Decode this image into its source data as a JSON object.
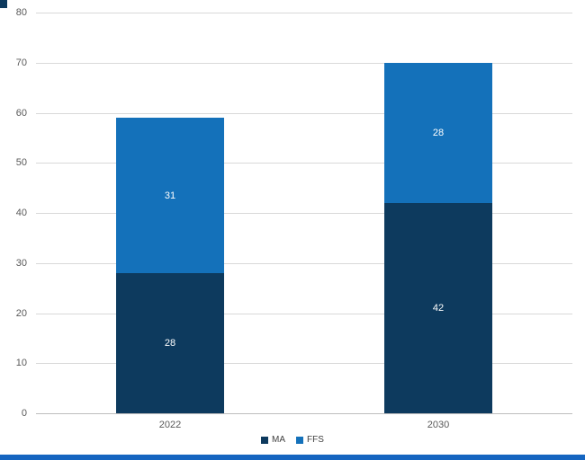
{
  "chart_data": {
    "type": "bar",
    "stacked": true,
    "title": "",
    "xlabel": "",
    "ylabel": "",
    "categories": [
      "2022",
      "2030"
    ],
    "series": [
      {
        "name": "MA",
        "color": "#0d3a5e",
        "values": [
          28,
          42
        ]
      },
      {
        "name": "FFS",
        "color": "#1471ba",
        "values": [
          31,
          28
        ]
      }
    ],
    "totals": [
      59,
      70
    ],
    "ylim": [
      0,
      80
    ],
    "ytick_step": 10,
    "ytick_labels": [
      "0",
      "10",
      "20",
      "30",
      "40",
      "50",
      "60",
      "70",
      "80"
    ],
    "grid": true,
    "legend_position": "bottom",
    "legend_labels": [
      "MA",
      "FFS"
    ]
  },
  "colors": {
    "background": "#ffffff",
    "gridline": "#d9d9d9",
    "axis_text": "#595959",
    "data_label_text": "#ffffff",
    "accent_border": "#1565c0",
    "corner_mark": "#0d3a5e"
  }
}
